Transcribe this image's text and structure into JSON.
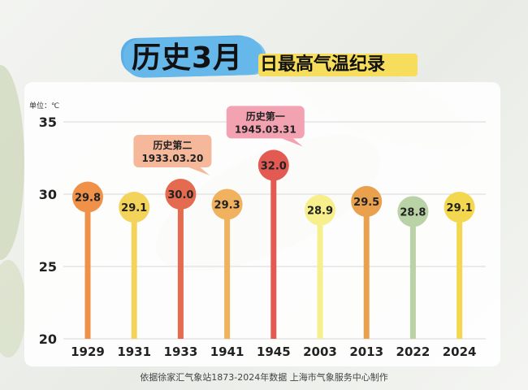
{
  "title": {
    "main": "历史3月",
    "sub": "日最高气温纪录"
  },
  "unit_label": "单位：℃",
  "footer": "依据徐家汇气象站1873-2024年数据   上海市气象服务中心制作",
  "annotations": [
    {
      "line1": "历史第二",
      "line2": "1933.03.20",
      "target_year": "1933"
    },
    {
      "line1": "历史第一",
      "line2": "1945.03.31",
      "target_year": "1945"
    }
  ],
  "chart_data": {
    "type": "bar",
    "title": "历史3月日最高气温纪录",
    "xlabel": "",
    "ylabel": "单位：℃",
    "ylim": [
      20,
      35
    ],
    "yticks": [
      "20",
      "25",
      "30",
      "35"
    ],
    "grid": true,
    "categories": [
      "1929",
      "1931",
      "1933",
      "1941",
      "1945",
      "2003",
      "2013",
      "2022",
      "2024"
    ],
    "values": [
      29.8,
      29.1,
      30.0,
      29.3,
      32.0,
      28.9,
      29.5,
      28.8,
      29.1
    ],
    "value_labels": [
      "29.8",
      "29.1",
      "30.0",
      "29.3",
      "32.0",
      "28.9",
      "29.5",
      "28.8",
      "29.1"
    ],
    "colors": [
      "#f0914a",
      "#f3d35a",
      "#e46a50",
      "#f0b25e",
      "#e25a52",
      "#f6ef8c",
      "#e9a14e",
      "#b9d3a6",
      "#f3d84f"
    ]
  }
}
